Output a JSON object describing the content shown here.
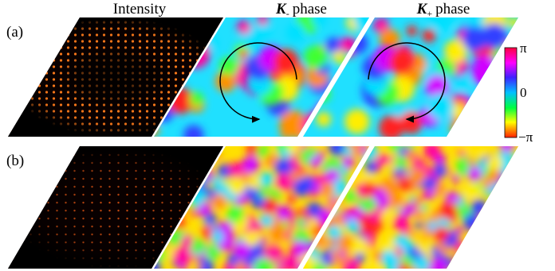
{
  "headers": [
    {
      "text": "Intensity"
    },
    {
      "symbol": "K",
      "subscript": "-",
      "text": "phase"
    },
    {
      "symbol": "K",
      "subscript": "+",
      "text": "phase"
    }
  ],
  "rows": [
    "(a)",
    "(b)"
  ],
  "colorbar": {
    "top": "π",
    "middle": "0",
    "bottom": "−π"
  }
}
